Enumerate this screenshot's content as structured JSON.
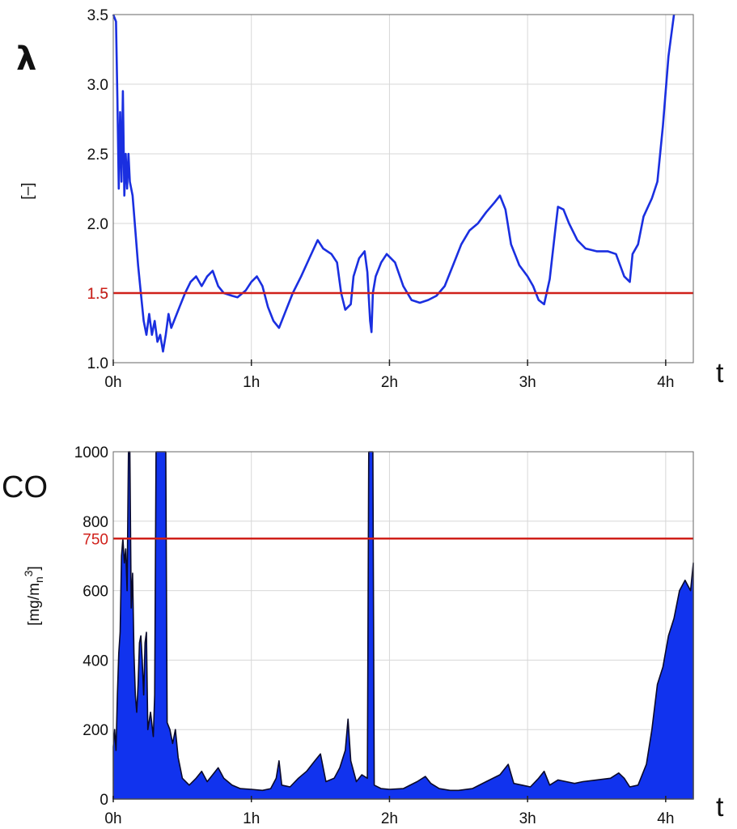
{
  "colors": {
    "series": "#1a2fe0",
    "area_fill": "#1133ee",
    "area_edge": "#0a0a2a",
    "threshold": "#d0201a",
    "grid": "#d7d7d7"
  },
  "chart_data": [
    {
      "type": "line",
      "ylabel": "[–]",
      "variable_symbol": "λ",
      "x_axis_symbol": "t",
      "x_unit": "hours",
      "x_ticks": [
        0,
        1,
        2,
        3,
        4
      ],
      "x_tick_labels": [
        "0h",
        "1h",
        "2h",
        "3h",
        "4h"
      ],
      "xlim": [
        0,
        4.2
      ],
      "y_ticks": [
        1.0,
        1.5,
        2.0,
        2.5,
        3.0,
        3.5
      ],
      "y_tick_labels": [
        "1.0",
        "1.5",
        "2.0",
        "2.5",
        "3.0",
        "3.5"
      ],
      "ylim": [
        1.0,
        3.5
      ],
      "grid": true,
      "threshold": {
        "value": 1.5,
        "label": "1.5"
      },
      "series": [
        {
          "points": [
            [
              0.0,
              3.5
            ],
            [
              0.02,
              3.45
            ],
            [
              0.03,
              2.9
            ],
            [
              0.04,
              2.25
            ],
            [
              0.05,
              2.8
            ],
            [
              0.06,
              2.3
            ],
            [
              0.07,
              2.95
            ],
            [
              0.08,
              2.2
            ],
            [
              0.09,
              2.5
            ],
            [
              0.1,
              2.25
            ],
            [
              0.11,
              2.5
            ],
            [
              0.12,
              2.3
            ],
            [
              0.14,
              2.2
            ],
            [
              0.16,
              1.95
            ],
            [
              0.18,
              1.7
            ],
            [
              0.2,
              1.5
            ],
            [
              0.22,
              1.3
            ],
            [
              0.24,
              1.2
            ],
            [
              0.26,
              1.35
            ],
            [
              0.28,
              1.2
            ],
            [
              0.3,
              1.3
            ],
            [
              0.32,
              1.15
            ],
            [
              0.34,
              1.2
            ],
            [
              0.36,
              1.08
            ],
            [
              0.38,
              1.2
            ],
            [
              0.4,
              1.35
            ],
            [
              0.42,
              1.25
            ],
            [
              0.44,
              1.3
            ],
            [
              0.48,
              1.4
            ],
            [
              0.52,
              1.5
            ],
            [
              0.56,
              1.58
            ],
            [
              0.6,
              1.62
            ],
            [
              0.64,
              1.55
            ],
            [
              0.68,
              1.62
            ],
            [
              0.72,
              1.66
            ],
            [
              0.76,
              1.55
            ],
            [
              0.8,
              1.5
            ],
            [
              0.86,
              1.48
            ],
            [
              0.9,
              1.47
            ],
            [
              0.96,
              1.52
            ],
            [
              1.0,
              1.58
            ],
            [
              1.04,
              1.62
            ],
            [
              1.08,
              1.55
            ],
            [
              1.12,
              1.4
            ],
            [
              1.16,
              1.3
            ],
            [
              1.2,
              1.25
            ],
            [
              1.24,
              1.35
            ],
            [
              1.3,
              1.5
            ],
            [
              1.36,
              1.62
            ],
            [
              1.42,
              1.75
            ],
            [
              1.48,
              1.88
            ],
            [
              1.52,
              1.82
            ],
            [
              1.58,
              1.78
            ],
            [
              1.62,
              1.72
            ],
            [
              1.65,
              1.5
            ],
            [
              1.68,
              1.38
            ],
            [
              1.72,
              1.42
            ],
            [
              1.74,
              1.62
            ],
            [
              1.78,
              1.75
            ],
            [
              1.82,
              1.8
            ],
            [
              1.84,
              1.65
            ],
            [
              1.86,
              1.3
            ],
            [
              1.87,
              1.22
            ],
            [
              1.88,
              1.5
            ],
            [
              1.9,
              1.62
            ],
            [
              1.94,
              1.72
            ],
            [
              1.98,
              1.78
            ],
            [
              2.04,
              1.72
            ],
            [
              2.1,
              1.55
            ],
            [
              2.16,
              1.45
            ],
            [
              2.22,
              1.43
            ],
            [
              2.28,
              1.45
            ],
            [
              2.34,
              1.48
            ],
            [
              2.4,
              1.55
            ],
            [
              2.46,
              1.7
            ],
            [
              2.52,
              1.85
            ],
            [
              2.58,
              1.95
            ],
            [
              2.64,
              2.0
            ],
            [
              2.7,
              2.08
            ],
            [
              2.76,
              2.15
            ],
            [
              2.8,
              2.2
            ],
            [
              2.84,
              2.1
            ],
            [
              2.88,
              1.85
            ],
            [
              2.94,
              1.7
            ],
            [
              3.0,
              1.62
            ],
            [
              3.04,
              1.55
            ],
            [
              3.08,
              1.45
            ],
            [
              3.12,
              1.42
            ],
            [
              3.16,
              1.6
            ],
            [
              3.2,
              1.95
            ],
            [
              3.22,
              2.12
            ],
            [
              3.26,
              2.1
            ],
            [
              3.3,
              2.0
            ],
            [
              3.36,
              1.88
            ],
            [
              3.42,
              1.82
            ],
            [
              3.5,
              1.8
            ],
            [
              3.58,
              1.8
            ],
            [
              3.64,
              1.78
            ],
            [
              3.7,
              1.62
            ],
            [
              3.74,
              1.58
            ],
            [
              3.76,
              1.78
            ],
            [
              3.8,
              1.85
            ],
            [
              3.84,
              2.05
            ],
            [
              3.9,
              2.18
            ],
            [
              3.94,
              2.3
            ],
            [
              3.98,
              2.7
            ],
            [
              4.02,
              3.2
            ],
            [
              4.06,
              3.5
            ]
          ]
        }
      ]
    },
    {
      "type": "area",
      "ylabel": "[mg/m_n^3]",
      "ylabel_main": "[mg/m",
      "ylabel_sub": "n",
      "ylabel_sup": "3",
      "ylabel_close": "]",
      "variable_symbol": "CO",
      "x_axis_symbol": "t",
      "x_unit": "hours",
      "x_ticks": [
        0,
        1,
        2,
        3,
        4
      ],
      "x_tick_labels": [
        "0h",
        "1h",
        "2h",
        "3h",
        "4h"
      ],
      "xlim": [
        0,
        4.2
      ],
      "y_ticks": [
        0,
        200,
        400,
        600,
        800,
        1000
      ],
      "y_tick_labels": [
        "0",
        "200",
        "400",
        "600",
        "800",
        "1000"
      ],
      "ylim": [
        0,
        1000
      ],
      "grid": true,
      "threshold": {
        "value": 750,
        "label": "750"
      },
      "series": [
        {
          "points": [
            [
              0.0,
              150
            ],
            [
              0.01,
              200
            ],
            [
              0.02,
              140
            ],
            [
              0.03,
              300
            ],
            [
              0.04,
              420
            ],
            [
              0.05,
              480
            ],
            [
              0.06,
              700
            ],
            [
              0.07,
              750
            ],
            [
              0.08,
              680
            ],
            [
              0.09,
              720
            ],
            [
              0.1,
              600
            ],
            [
              0.11,
              1000
            ],
            [
              0.12,
              1000
            ],
            [
              0.13,
              550
            ],
            [
              0.14,
              650
            ],
            [
              0.15,
              420
            ],
            [
              0.16,
              300
            ],
            [
              0.17,
              250
            ],
            [
              0.18,
              330
            ],
            [
              0.19,
              450
            ],
            [
              0.2,
              470
            ],
            [
              0.21,
              400
            ],
            [
              0.22,
              300
            ],
            [
              0.23,
              450
            ],
            [
              0.24,
              480
            ],
            [
              0.25,
              200
            ],
            [
              0.27,
              250
            ],
            [
              0.29,
              180
            ],
            [
              0.3,
              300
            ],
            [
              0.31,
              1000
            ],
            [
              0.38,
              1000
            ],
            [
              0.39,
              220
            ],
            [
              0.41,
              200
            ],
            [
              0.43,
              160
            ],
            [
              0.45,
              200
            ],
            [
              0.47,
              120
            ],
            [
              0.5,
              60
            ],
            [
              0.55,
              40
            ],
            [
              0.6,
              60
            ],
            [
              0.64,
              80
            ],
            [
              0.68,
              50
            ],
            [
              0.72,
              70
            ],
            [
              0.76,
              90
            ],
            [
              0.8,
              60
            ],
            [
              0.86,
              40
            ],
            [
              0.92,
              30
            ],
            [
              1.0,
              28
            ],
            [
              1.08,
              25
            ],
            [
              1.14,
              30
            ],
            [
              1.18,
              60
            ],
            [
              1.2,
              110
            ],
            [
              1.22,
              40
            ],
            [
              1.28,
              35
            ],
            [
              1.34,
              60
            ],
            [
              1.4,
              80
            ],
            [
              1.46,
              110
            ],
            [
              1.5,
              130
            ],
            [
              1.54,
              50
            ],
            [
              1.6,
              60
            ],
            [
              1.64,
              90
            ],
            [
              1.68,
              140
            ],
            [
              1.7,
              230
            ],
            [
              1.72,
              110
            ],
            [
              1.76,
              50
            ],
            [
              1.8,
              70
            ],
            [
              1.84,
              60
            ],
            [
              1.85,
              1000
            ],
            [
              1.88,
              1000
            ],
            [
              1.89,
              40
            ],
            [
              1.94,
              30
            ],
            [
              2.0,
              28
            ],
            [
              2.1,
              30
            ],
            [
              2.2,
              50
            ],
            [
              2.26,
              65
            ],
            [
              2.3,
              45
            ],
            [
              2.36,
              30
            ],
            [
              2.44,
              25
            ],
            [
              2.5,
              25
            ],
            [
              2.6,
              30
            ],
            [
              2.7,
              50
            ],
            [
              2.8,
              70
            ],
            [
              2.86,
              100
            ],
            [
              2.9,
              45
            ],
            [
              2.96,
              40
            ],
            [
              3.02,
              35
            ],
            [
              3.08,
              60
            ],
            [
              3.12,
              80
            ],
            [
              3.16,
              40
            ],
            [
              3.22,
              55
            ],
            [
              3.28,
              50
            ],
            [
              3.34,
              45
            ],
            [
              3.4,
              50
            ],
            [
              3.5,
              55
            ],
            [
              3.6,
              60
            ],
            [
              3.66,
              75
            ],
            [
              3.7,
              60
            ],
            [
              3.74,
              35
            ],
            [
              3.8,
              40
            ],
            [
              3.86,
              100
            ],
            [
              3.9,
              200
            ],
            [
              3.94,
              330
            ],
            [
              3.98,
              380
            ],
            [
              4.02,
              470
            ],
            [
              4.06,
              520
            ],
            [
              4.1,
              600
            ],
            [
              4.14,
              630
            ],
            [
              4.18,
              600
            ],
            [
              4.2,
              680
            ]
          ]
        }
      ]
    }
  ]
}
